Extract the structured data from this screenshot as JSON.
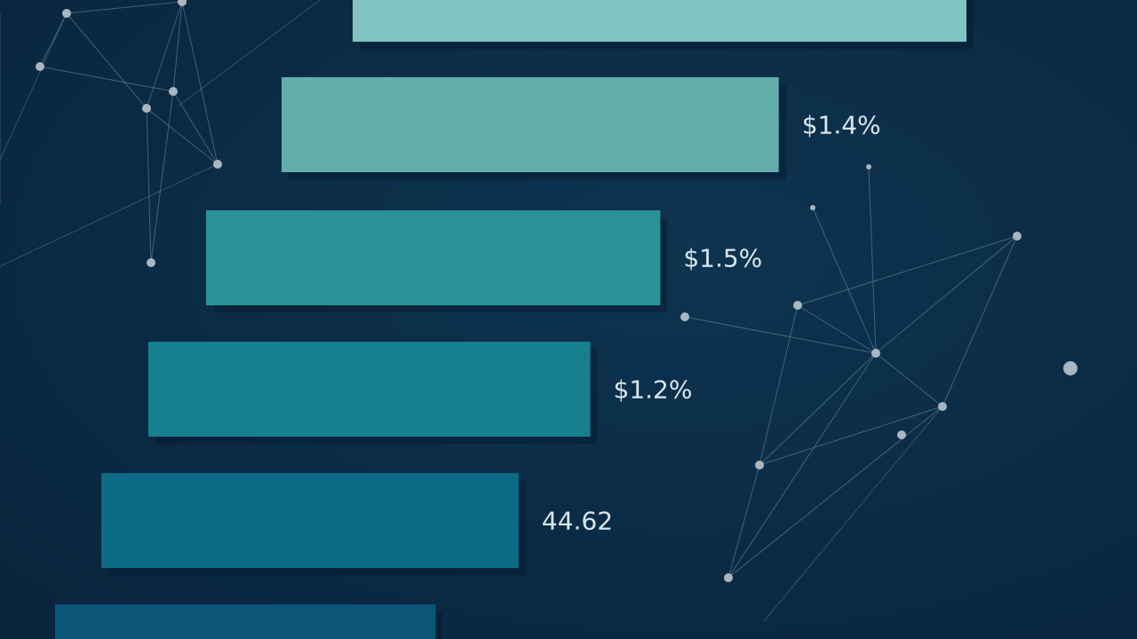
{
  "chart_data": {
    "type": "bar",
    "orientation": "horizontal",
    "title": "",
    "xlabel": "",
    "ylabel": "",
    "values": [
      100,
      81,
      74,
      72,
      68,
      62
    ],
    "data_labels": [
      "",
      "$1.4%",
      "$1.5%",
      "$1.2%",
      "44.62",
      ""
    ],
    "colors": [
      "#7fc4c0",
      "#63aeab",
      "#2a9199",
      "#17808f",
      "#0d6a85",
      "#0b5677"
    ],
    "grid": false,
    "background_color": "#0a2b45",
    "decoration": "network-nodes"
  }
}
